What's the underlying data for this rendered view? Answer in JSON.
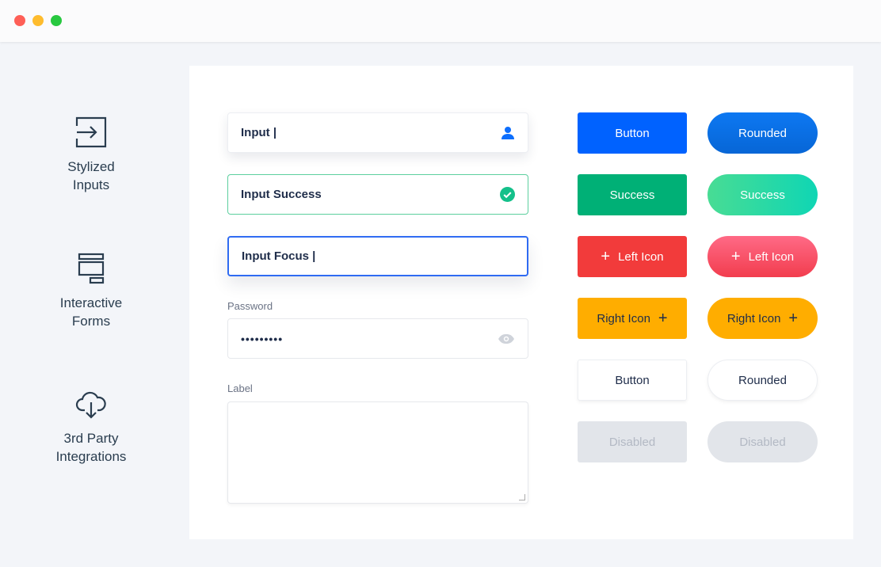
{
  "window": {
    "controls": {
      "close": "#fe5f57",
      "minimize": "#febc2e",
      "maximize": "#28c840"
    }
  },
  "features": [
    {
      "label_line1": "Stylized",
      "label_line2": "Inputs",
      "icon": "sign-in-icon"
    },
    {
      "label_line1": "Interactive",
      "label_line2": "Forms",
      "icon": "form-layout-icon"
    },
    {
      "label_line1": "3rd Party",
      "label_line2": "Integrations",
      "icon": "cloud-download-icon"
    }
  ],
  "inputs": {
    "default": {
      "value": "Input |",
      "icon": "user-icon"
    },
    "success": {
      "value": "Input Success",
      "icon": "check-circle-icon",
      "border": "#5ccf9e"
    },
    "focus": {
      "value": "Input Focus |",
      "border": "#2f6bf2"
    },
    "password": {
      "label": "Password",
      "value": "•••••••••",
      "icon": "eye-icon"
    },
    "textarea": {
      "label": "Label",
      "value": ""
    }
  },
  "buttons": [
    {
      "label": "Button",
      "variant": "primary",
      "color": "#0062ff"
    },
    {
      "label": "Rounded",
      "variant": "primary-rounded",
      "color": "#0a6fe0"
    },
    {
      "label": "Success",
      "variant": "success",
      "color": "#00b076"
    },
    {
      "label": "Success",
      "variant": "success-rounded",
      "color": "#13d8a8"
    },
    {
      "label": "Left Icon",
      "variant": "danger",
      "icon": "plus-icon",
      "color": "#f23b3b"
    },
    {
      "label": "Left Icon",
      "variant": "danger-rounded",
      "icon": "plus-icon",
      "color": "#ff5a75"
    },
    {
      "label": "Right Icon",
      "variant": "warning",
      "icon": "plus-icon",
      "color": "#ffad00"
    },
    {
      "label": "Right Icon",
      "variant": "warning-rounded",
      "icon": "plus-icon",
      "color": "#ffad00"
    },
    {
      "label": "Button",
      "variant": "white"
    },
    {
      "label": "Rounded",
      "variant": "white-rounded"
    },
    {
      "label": "Disabled",
      "variant": "disabled"
    },
    {
      "label": "Disabled",
      "variant": "disabled-rounded"
    }
  ]
}
